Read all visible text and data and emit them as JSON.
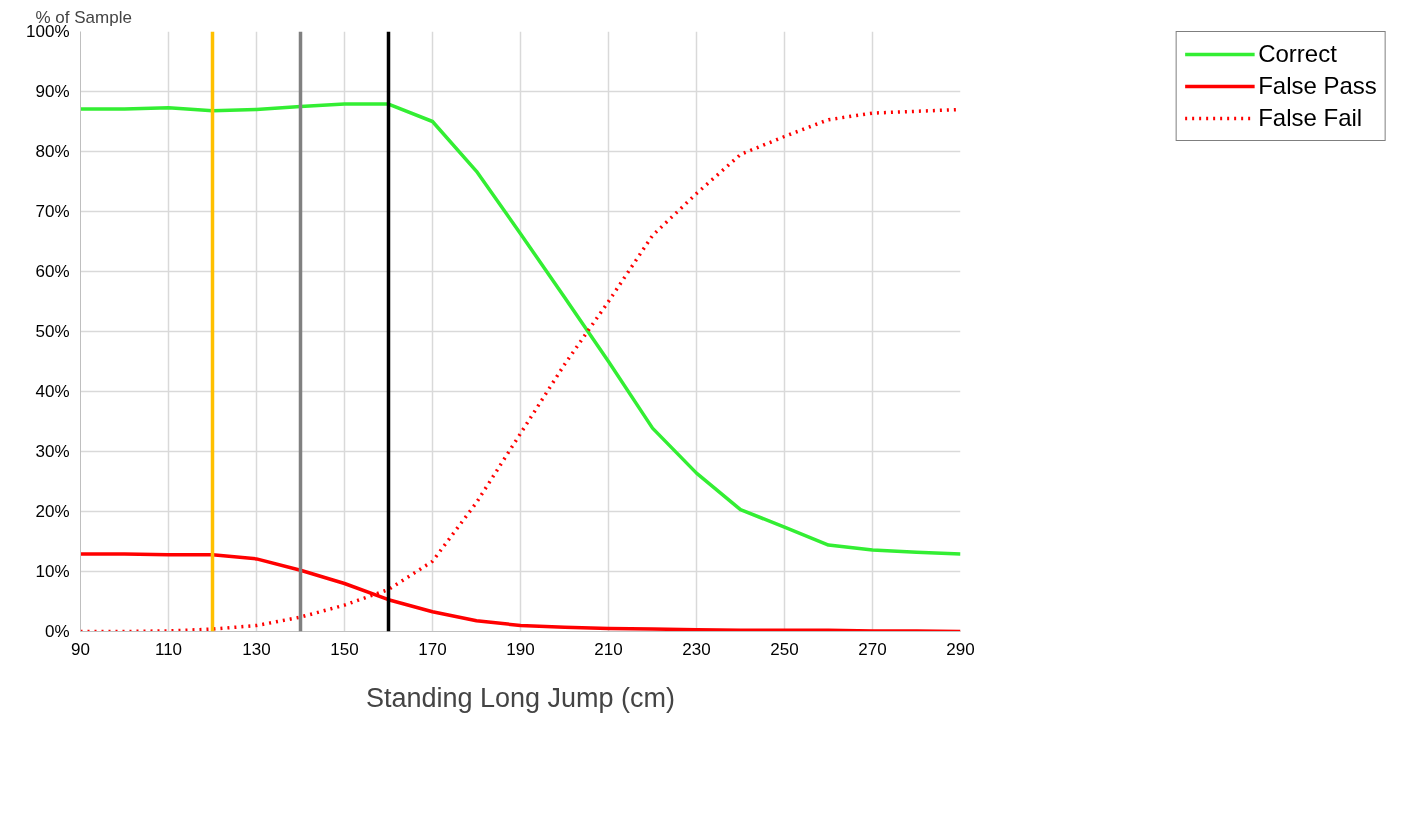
{
  "chart_data": {
    "type": "line",
    "xlabel": "Standing Long Jump (cm)",
    "ylabel": "% of Sample",
    "x": [
      90,
      100,
      110,
      120,
      130,
      140,
      150,
      160,
      170,
      180,
      190,
      200,
      210,
      220,
      230,
      240,
      250,
      260,
      270,
      280,
      290
    ],
    "series": [
      {
        "name": "Correct",
        "color": "#33ee33",
        "line_style": "solid",
        "values": [
          87.1,
          87.1,
          87.3,
          86.8,
          87,
          87.5,
          87.9,
          87.9,
          85,
          76.7,
          66.3,
          55.7,
          45,
          33.9,
          26.4,
          20.3,
          17.4,
          14.4,
          13.6,
          13.2,
          12.9
        ]
      },
      {
        "name": "False Pass",
        "color": "#ff0000",
        "line_style": "solid",
        "values": [
          12.9,
          12.9,
          12.8,
          12.8,
          12.1,
          10.2,
          8,
          5.3,
          3.3,
          1.8,
          1,
          0.7,
          0.5,
          0.4,
          0.3,
          0.2,
          0.2,
          0.2,
          0.1,
          0.1,
          0
        ]
      },
      {
        "name": "False Fail",
        "color": "#ff0000",
        "line_style": "dotted",
        "values": [
          0,
          0,
          0.1,
          0.4,
          1,
          2.4,
          4.4,
          7,
          11.7,
          21.5,
          33,
          44.5,
          55,
          66,
          73,
          79.5,
          82.5,
          85.3,
          86.4,
          86.7,
          87
        ]
      }
    ],
    "ref_lines": [
      {
        "axis": "x",
        "value": 120,
        "color": "#ffc000"
      },
      {
        "axis": "x",
        "value": 140,
        "color": "#808080"
      },
      {
        "axis": "x",
        "value": 160,
        "color": "#000000"
      }
    ],
    "xlim": [
      90,
      290
    ],
    "xticks": [
      90,
      110,
      130,
      150,
      170,
      190,
      210,
      230,
      250,
      270,
      290
    ],
    "ylim": [
      0,
      100
    ],
    "yticks": [
      {
        "value": 0,
        "label": "0%"
      },
      {
        "value": 10,
        "label": "10%"
      },
      {
        "value": 20,
        "label": "20%"
      },
      {
        "value": 30,
        "label": "30%"
      },
      {
        "value": 40,
        "label": "40%"
      },
      {
        "value": 50,
        "label": "50%"
      },
      {
        "value": 60,
        "label": "60%"
      },
      {
        "value": 70,
        "label": "70%"
      },
      {
        "value": 80,
        "label": "80%"
      },
      {
        "value": 90,
        "label": "90%"
      },
      {
        "value": 100,
        "label": "100%"
      }
    ],
    "grid": true,
    "legend": "top right",
    "marker": "none"
  }
}
